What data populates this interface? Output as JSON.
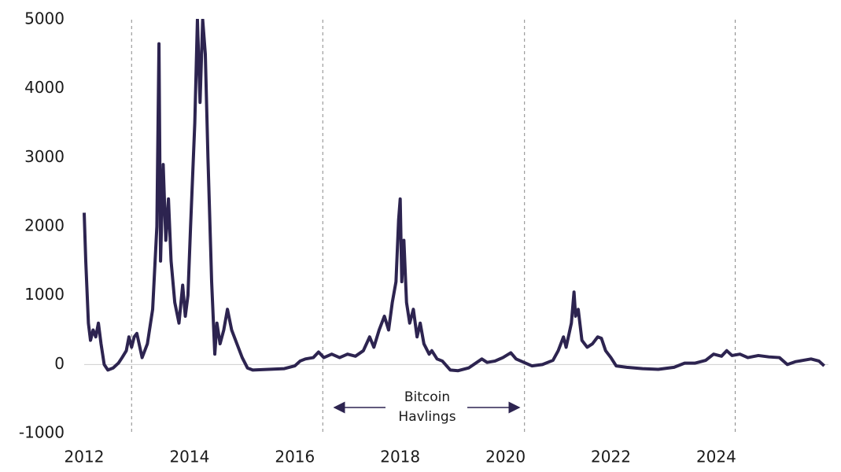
{
  "chart_data": {
    "type": "line",
    "x": [
      2012.0,
      2012.03,
      2012.08,
      2012.12,
      2012.17,
      2012.22,
      2012.27,
      2012.32,
      2012.38,
      2012.45,
      2012.55,
      2012.65,
      2012.72,
      2012.8,
      2012.85,
      2012.9,
      2012.95,
      2013.0,
      2013.1,
      2013.2,
      2013.3,
      2013.38,
      2013.42,
      2013.45,
      2013.5,
      2013.55,
      2013.6,
      2013.65,
      2013.72,
      2013.8,
      2013.87,
      2013.92,
      2013.97,
      2014.02,
      2014.1,
      2014.15,
      2014.2,
      2014.25,
      2014.3,
      2014.35,
      2014.42,
      2014.48,
      2014.52,
      2014.58,
      2014.65,
      2014.72,
      2014.8,
      2014.9,
      2015.0,
      2015.1,
      2015.2,
      2015.5,
      2015.8,
      2016.0,
      2016.1,
      2016.2,
      2016.35,
      2016.45,
      2016.55,
      2016.7,
      2016.85,
      2017.0,
      2017.15,
      2017.3,
      2017.42,
      2017.5,
      2017.6,
      2017.7,
      2017.78,
      2017.85,
      2017.92,
      2017.97,
      2018.0,
      2018.03,
      2018.07,
      2018.12,
      2018.18,
      2018.25,
      2018.32,
      2018.38,
      2018.45,
      2018.55,
      2018.6,
      2018.7,
      2018.8,
      2018.95,
      2019.1,
      2019.3,
      2019.55,
      2019.65,
      2019.8,
      2019.95,
      2020.1,
      2020.2,
      2020.35,
      2020.5,
      2020.7,
      2020.9,
      2021.0,
      2021.1,
      2021.15,
      2021.25,
      2021.3,
      2021.33,
      2021.38,
      2021.45,
      2021.55,
      2021.65,
      2021.75,
      2021.82,
      2021.9,
      2022.0,
      2022.1,
      2022.3,
      2022.6,
      2022.9,
      2023.2,
      2023.4,
      2023.6,
      2023.8,
      2023.95,
      2024.1,
      2024.2,
      2024.3,
      2024.45,
      2024.6,
      2024.8,
      2025.0,
      2025.2,
      2025.35,
      2025.5,
      2025.65,
      2025.8,
      2025.95,
      2026.05
    ],
    "values": [
      2200,
      1500,
      600,
      350,
      500,
      400,
      600,
      300,
      0,
      -80,
      -50,
      20,
      100,
      200,
      400,
      250,
      400,
      450,
      100,
      300,
      800,
      2000,
      4650,
      1500,
      2900,
      1800,
      2400,
      1500,
      900,
      600,
      1150,
      700,
      1000,
      2000,
      3500,
      5000,
      3800,
      5000,
      4500,
      3000,
      1200,
      150,
      600,
      300,
      500,
      800,
      500,
      300,
      100,
      -50,
      -80,
      -70,
      -60,
      -20,
      50,
      80,
      100,
      180,
      100,
      150,
      100,
      150,
      120,
      200,
      400,
      250,
      500,
      700,
      500,
      900,
      1200,
      2100,
      2400,
      1200,
      1800,
      900,
      600,
      800,
      400,
      600,
      300,
      150,
      200,
      80,
      50,
      -80,
      -90,
      -50,
      80,
      30,
      50,
      100,
      170,
      80,
      30,
      -20,
      0,
      60,
      200,
      400,
      250,
      600,
      1050,
      700,
      800,
      350,
      250,
      300,
      400,
      380,
      200,
      100,
      -20,
      -40,
      -60,
      -70,
      -40,
      20,
      20,
      60,
      150,
      120,
      200,
      130,
      150,
      100,
      130,
      110,
      100,
      0,
      40,
      60,
      80,
      50,
      -20
    ],
    "color": "#2d2450",
    "xlim": [
      2012,
      2026.13
    ],
    "xticks": [
      2012,
      2014,
      2016,
      2018,
      2020,
      2022,
      2024
    ],
    "ylim": [
      -1000,
      5000
    ],
    "yticks": [
      -1000,
      0,
      1000,
      2000,
      3000,
      4000,
      5000
    ],
    "vlines": [
      2012.9,
      2016.53,
      2020.36,
      2024.36
    ],
    "annotation_lines": [
      "Bitcoin",
      "Havlings"
    ]
  }
}
